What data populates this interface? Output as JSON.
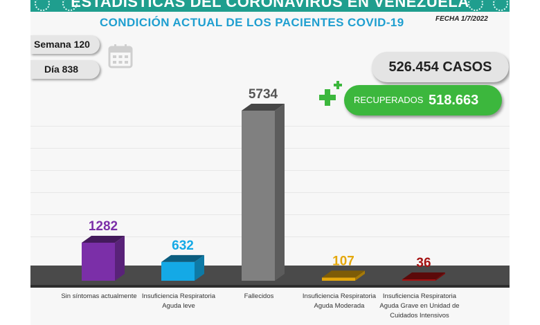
{
  "header": {
    "banner_title": "ESTADÍSTICAS DEL CORONAVIRUS EN VENEZUELA",
    "subtitle": "CONDICIÓN ACTUAL DE LOS PACIENTES COVID-19",
    "date": "FECHA 1/7/2022"
  },
  "counters": {
    "week": "Semana 120",
    "day": "Día 838",
    "cases": "526.454 CASOS",
    "recovered_label": "RECUPERADOS",
    "recovered_value": "518.663"
  },
  "icons": [
    "calendar-icon",
    "plus-icon",
    "virus-icon"
  ],
  "colors": {
    "banner": "#1f9e8e",
    "title": "#1f9fd0",
    "recovered": "#3cb73d"
  },
  "chart_data": {
    "type": "bar",
    "categories": [
      "Sin síntomas actualmente",
      "Insuficiencia Respiratoria Aguda leve",
      "Fallecidos",
      "Insuficiencia Respiratoria Aguda Moderada",
      "Insuficiencia Respiratoria Aguda Grave en Unidad de Cuidados Intensivos"
    ],
    "values": [
      1282,
      632,
      5734,
      107,
      36
    ],
    "value_labels": [
      "1282",
      "632",
      "5734",
      "107",
      "36"
    ],
    "colors": [
      "#7b2fa8",
      "#14a9e6",
      "#808080",
      "#e5a80c",
      "#a51313"
    ],
    "label_colors": [
      "#7b2fa8",
      "#14a9e6",
      "#555555",
      "#e5a80c",
      "#a51313"
    ],
    "ylim": [
      0,
      5734
    ]
  }
}
